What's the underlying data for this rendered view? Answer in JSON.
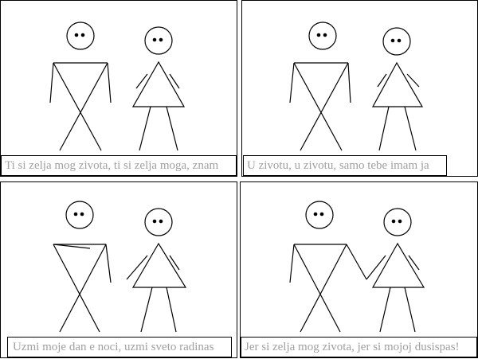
{
  "panels": [
    {
      "caption": "Ti si zelja mog zivota, ti si zelja moga, znam"
    },
    {
      "caption": "U zivotu, u zivotu, samo tebe imam ja"
    },
    {
      "caption": "Uzmi moje dan e noci, uzmi sveto radinas"
    },
    {
      "caption": "Jer si zelja mog zivota, jer si mojoj dusispas!"
    }
  ]
}
